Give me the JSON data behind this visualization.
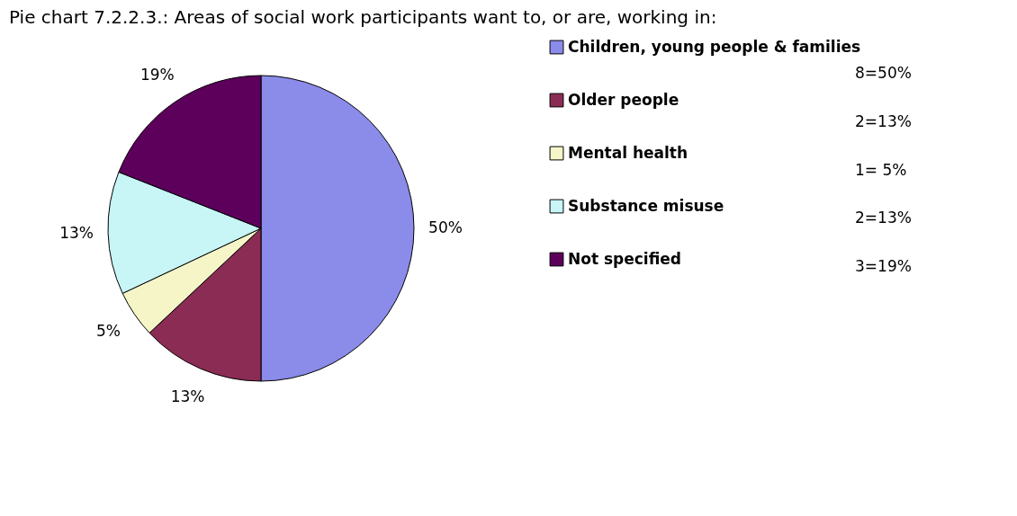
{
  "chart_data": {
    "type": "pie",
    "title": "Pie chart 7.2.2.3.: Areas of social work participants want to, or are, working in:",
    "categories": [
      "Children, young people & families",
      "Older people",
      "Mental health",
      "Substance misuse",
      "Not specified"
    ],
    "values": [
      50,
      13,
      5,
      13,
      19
    ],
    "colors": [
      "#8b8bea",
      "#8b2c55",
      "#f5f5c8",
      "#c8f5f5",
      "#5c005c"
    ],
    "value_labels": [
      "50%",
      "13%",
      "5%",
      "13%",
      "19%"
    ],
    "annotations": [
      "8=50%",
      "2=13%",
      "1= 5%",
      "2=13%",
      "3=19%"
    ],
    "legend": "right"
  }
}
